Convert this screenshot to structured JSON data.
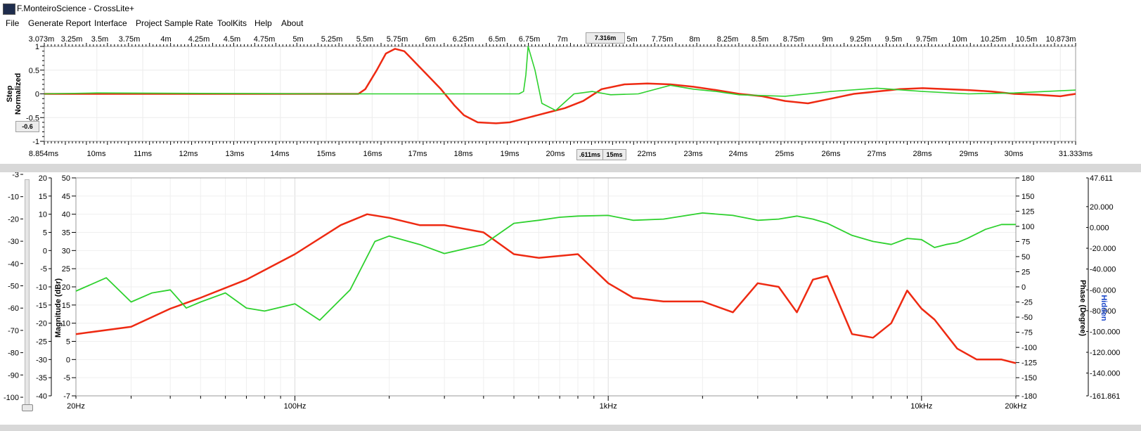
{
  "app": {
    "title": "F.MonteiroScience - CrossLite+"
  },
  "menu": [
    "File",
    "Generate Report",
    "Interface",
    "Project Sample Rate",
    "ToolKits",
    "Help",
    "About"
  ],
  "step_chart": {
    "top_axis_ticks": [
      "3.073m",
      "3.25m",
      "3.5m",
      "3.75m",
      "4m",
      "4.25m",
      "4.5m",
      "4.75m",
      "5m",
      "5.25m",
      "5.5m",
      "5.75m",
      "6m",
      "6.25m",
      "6.5m",
      "6.75m",
      "7m",
      "5m",
      "7.75m",
      "8m",
      "8.25m",
      "8.5m",
      "8.75m",
      "9m",
      "9.25m",
      "9.5m",
      "9.75m",
      "10m",
      "10.25m",
      "10.5m",
      "10.873m"
    ],
    "top_cursor_readout": "7.316m",
    "bottom_axis_ticks": [
      "8.854ms",
      "10ms",
      "11ms",
      "12ms",
      "13ms",
      "14ms",
      "15ms",
      "16ms",
      "17ms",
      "18ms",
      "19ms",
      "20ms",
      "22ms",
      "23ms",
      "24ms",
      "25ms",
      "26ms",
      "27ms",
      "28ms",
      "29ms",
      "30ms",
      "31.333ms"
    ],
    "bottom_cursor_readout_left": ".611ms",
    "bottom_cursor_readout_right": "15ms",
    "y_ticks": [
      "1",
      "0.5",
      "0",
      "-0.5",
      "-1"
    ],
    "y_label_line1": "Step",
    "y_label_line2": "Normalized",
    "y_readout": "-0.6"
  },
  "freq_chart": {
    "slider_ticks": [
      "-3",
      "-10",
      "-20",
      "-30",
      "-40",
      "-50",
      "-60",
      "-70",
      "-80",
      "-90",
      "-100"
    ],
    "mag_scale_a": [
      "20",
      "15",
      "10",
      "5",
      "0",
      "-5",
      "-10",
      "-15",
      "-20",
      "-25",
      "-30",
      "-35",
      "-40"
    ],
    "mag_scale_b": [
      "50",
      "45",
      "40",
      "35",
      "30",
      "25",
      "20",
      "15",
      "10",
      "5",
      "0",
      "-5",
      "-7"
    ],
    "y_label": "Magnitude (dBr)",
    "x_ticks": [
      "20Hz",
      "100Hz",
      "1kHz",
      "10kHz",
      "20kHz"
    ],
    "phase_ticks": [
      "180",
      "150",
      "125",
      "100",
      "75",
      "50",
      "25",
      "0",
      "-25",
      "-50",
      "-75",
      "-100",
      "-125",
      "-150",
      "-180"
    ],
    "phase_label": "Phase (Degree)",
    "right_scale": [
      "47.611",
      "20.000",
      "0.000",
      "-20.000",
      "-40.000",
      "-60.000",
      "-80.000",
      "-100.000",
      "-120.000",
      "-140.000",
      "-161.861"
    ],
    "right_label": "Hidden"
  },
  "colors": {
    "red_trace": "#ee2a12",
    "green_trace": "#2ed12e",
    "hidden_label": "#1b47c9"
  },
  "chart_data": [
    {
      "type": "line",
      "x_unit": "ms",
      "xlim": [
        8.854,
        31.333
      ],
      "ylim": [
        -1,
        1
      ],
      "series": [
        {
          "color": "red",
          "x": [
            8.854,
            15.7,
            15.85,
            16.1,
            16.3,
            16.5,
            16.7,
            16.8,
            17.0,
            17.2,
            17.5,
            17.8,
            18.0,
            18.3,
            18.7,
            19.0,
            19.4,
            19.8,
            20.2,
            20.6,
            21.0,
            21.5,
            22.0,
            22.5,
            23.0,
            23.5,
            24.0,
            24.5,
            25.0,
            25.5,
            26.0,
            26.5,
            27.0,
            27.5,
            28.0,
            28.5,
            29.0,
            29.5,
            30.0,
            30.5,
            31.0,
            31.333
          ],
          "y": [
            0,
            0,
            0.1,
            0.5,
            0.85,
            0.95,
            0.9,
            0.8,
            0.6,
            0.4,
            0.1,
            -0.25,
            -0.45,
            -0.6,
            -0.62,
            -0.6,
            -0.5,
            -0.4,
            -0.3,
            -0.15,
            0.1,
            0.2,
            0.22,
            0.2,
            0.15,
            0.08,
            0,
            -0.05,
            -0.15,
            -0.2,
            -0.1,
            0,
            0.05,
            0.1,
            0.12,
            0.1,
            0.08,
            0.05,
            0,
            -0.02,
            -0.05,
            0
          ]
        },
        {
          "color": "green",
          "x": [
            8.854,
            10.0,
            15.0,
            19.2,
            19.3,
            19.35,
            19.4,
            19.55,
            19.7,
            20.0,
            20.4,
            20.8,
            21.2,
            21.8,
            22.5,
            23.0,
            23.5,
            24.0,
            25.0,
            26.0,
            27.0,
            28.0,
            29.0,
            30.0,
            31.333
          ],
          "y": [
            0,
            0.02,
            0,
            0,
            0.05,
            0.4,
            1.0,
            0.5,
            -0.2,
            -0.35,
            0,
            0.05,
            -0.02,
            0,
            0.18,
            0.1,
            0.05,
            -0.02,
            -0.05,
            0.05,
            0.12,
            0.05,
            0,
            0.02,
            0.08
          ]
        }
      ]
    },
    {
      "type": "line",
      "x_scale": "log",
      "xlim": [
        20,
        20000
      ],
      "ylim": [
        -40,
        20
      ],
      "y2_label": "Phase (Degree)",
      "y2lim": [
        -180,
        180
      ],
      "series": [
        {
          "color": "red",
          "axis": "magnitude",
          "x": [
            20,
            30,
            40,
            50,
            70,
            100,
            140,
            170,
            200,
            250,
            300,
            400,
            500,
            600,
            800,
            1000,
            1200,
            1500,
            2000,
            2500,
            3000,
            3500,
            4000,
            4500,
            5000,
            6000,
            7000,
            8000,
            9000,
            10000,
            11000,
            13000,
            15000,
            18000,
            20000
          ],
          "y": [
            -23,
            -21,
            -16,
            -13,
            -8,
            -1,
            7,
            10,
            9,
            7,
            7,
            5,
            -1,
            -2,
            -1,
            -9,
            -13,
            -14,
            -14,
            -17,
            -9,
            -10,
            -17,
            -8,
            -7,
            -23,
            -24,
            -20,
            -11,
            -16,
            -19,
            -27,
            -30,
            -30,
            -31
          ]
        },
        {
          "color": "green",
          "axis": "phase",
          "x": [
            20,
            25,
            30,
            35,
            40,
            45,
            50,
            60,
            70,
            80,
            100,
            120,
            150,
            180,
            200,
            250,
            300,
            400,
            500,
            600,
            700,
            800,
            1000,
            1200,
            1500,
            2000,
            2500,
            3000,
            3500,
            4000,
            4500,
            5000,
            6000,
            7000,
            8000,
            9000,
            10000,
            11000,
            12000,
            13000,
            14000,
            16000,
            18000,
            20000
          ],
          "y": [
            -7,
            15,
            -25,
            -10,
            -5,
            -35,
            -25,
            -10,
            -35,
            -40,
            -28,
            -55,
            -5,
            75,
            84,
            70,
            55,
            70,
            105,
            110,
            115,
            117,
            118,
            110,
            112,
            122,
            118,
            110,
            112,
            117,
            112,
            105,
            85,
            75,
            70,
            80,
            78,
            65,
            70,
            73,
            80,
            95,
            103,
            103
          ]
        }
      ]
    }
  ]
}
